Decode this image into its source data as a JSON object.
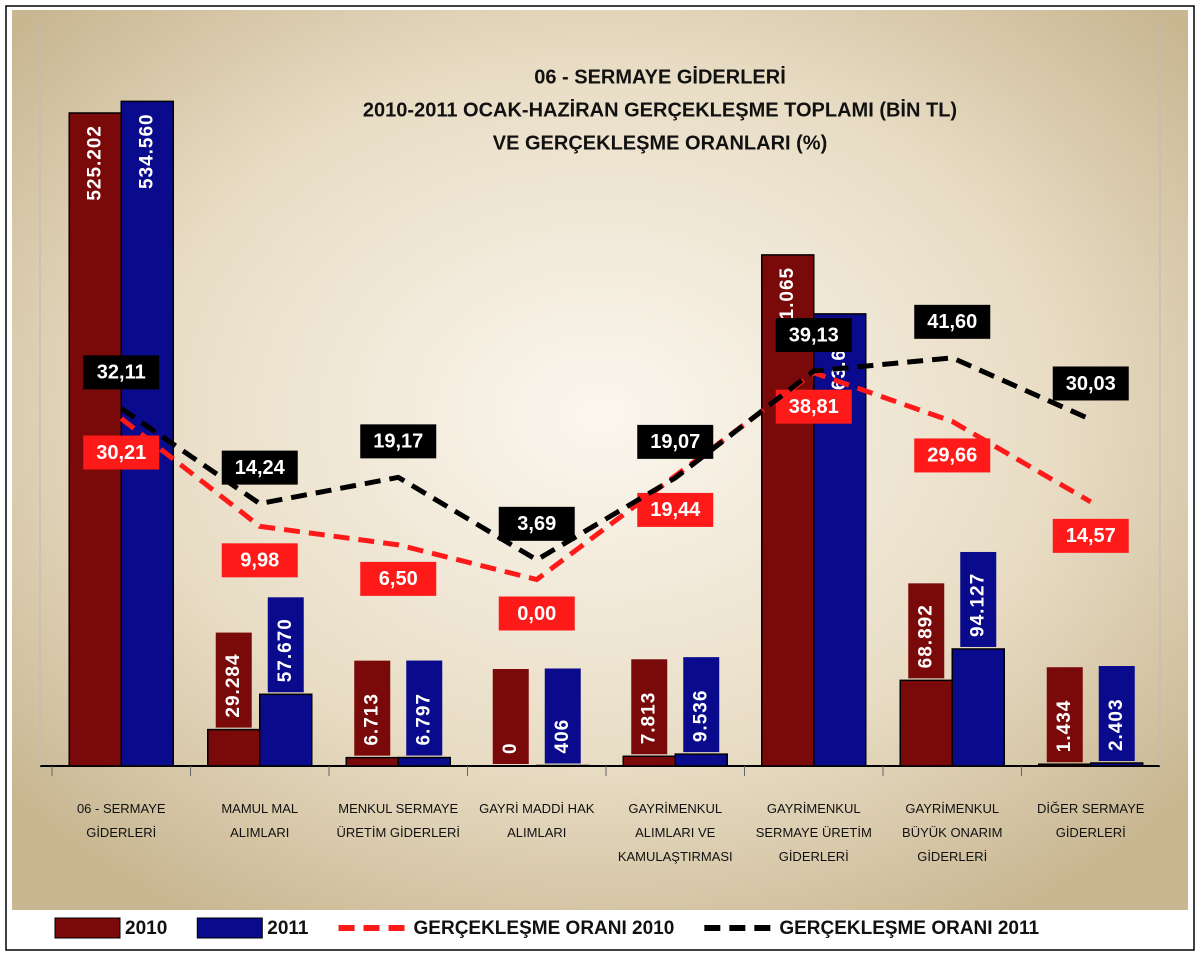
{
  "chart_data": {
    "type": "bar-line",
    "title": [
      "06 - SERMAYE GİDERLERİ",
      "2010-2011 OCAK-HAZİRAN GERÇEKLEŞME TOPLAMI (BİN TL)",
      "VE GERÇEKLEŞME ORANLARI (%)"
    ],
    "categories": [
      "06 - SERMAYE GİDERLERİ",
      "MAMUL MAL ALIMLARI",
      "MENKUL SERMAYE ÜRETİM GİDERLERİ",
      "GAYRİ MADDİ HAK ALIMLARI",
      "GAYRİMENKUL ALIMLARI VE KAMULAŞTIRMASI",
      "GAYRİMENKUL SERMAYE ÜRETİM GİDERLERİ",
      "GAYRİMENKUL BÜYÜK ONARIM GİDERLERİ",
      "DİĞER SERMAYE GİDERLERİ"
    ],
    "series": [
      {
        "name": "2010",
        "type": "bar",
        "color": "#7a0a0a",
        "values": [
          525202,
          29284,
          6713,
          0,
          7813,
          411065,
          68892,
          1434
        ],
        "value_labels": [
          "525.202",
          "29.284",
          "6.713",
          "0",
          "7.813",
          "411.065",
          "68.892",
          "1.434"
        ]
      },
      {
        "name": "2011",
        "type": "bar",
        "color": "#0a0a8c",
        "values": [
          534560,
          57670,
          6797,
          406,
          9536,
          363621,
          94127,
          2403
        ],
        "value_labels": [
          "534.560",
          "57.670",
          "6.797",
          "406",
          "9.536",
          "363.621",
          "94.127",
          "2.403"
        ]
      },
      {
        "name": "GERÇEKLEŞME ORANI 2010",
        "type": "line",
        "axis": "y2",
        "color": "#ff1a1a",
        "values": [
          30.21,
          9.98,
          6.5,
          0,
          19.44,
          38.81,
          29.66,
          14.57
        ],
        "value_labels": [
          "30,21",
          "9,98",
          "6,50",
          "0,00",
          "19,44",
          "38,81",
          "29,66",
          "14,57"
        ]
      },
      {
        "name": "GERÇEKLEŞME ORANI 2011",
        "type": "line",
        "axis": "y2",
        "color": "#000000",
        "values": [
          32.11,
          14.24,
          19.17,
          3.69,
          19.07,
          39.13,
          41.6,
          30.03
        ],
        "value_labels": [
          "32,11",
          "14,24",
          "19,17",
          "3,69",
          "19,07",
          "39,13",
          "41,60",
          "30,03"
        ]
      }
    ],
    "ylim": [
      0,
      600000
    ],
    "y2lim": [
      -35,
      105
    ],
    "legend": "bottom"
  }
}
